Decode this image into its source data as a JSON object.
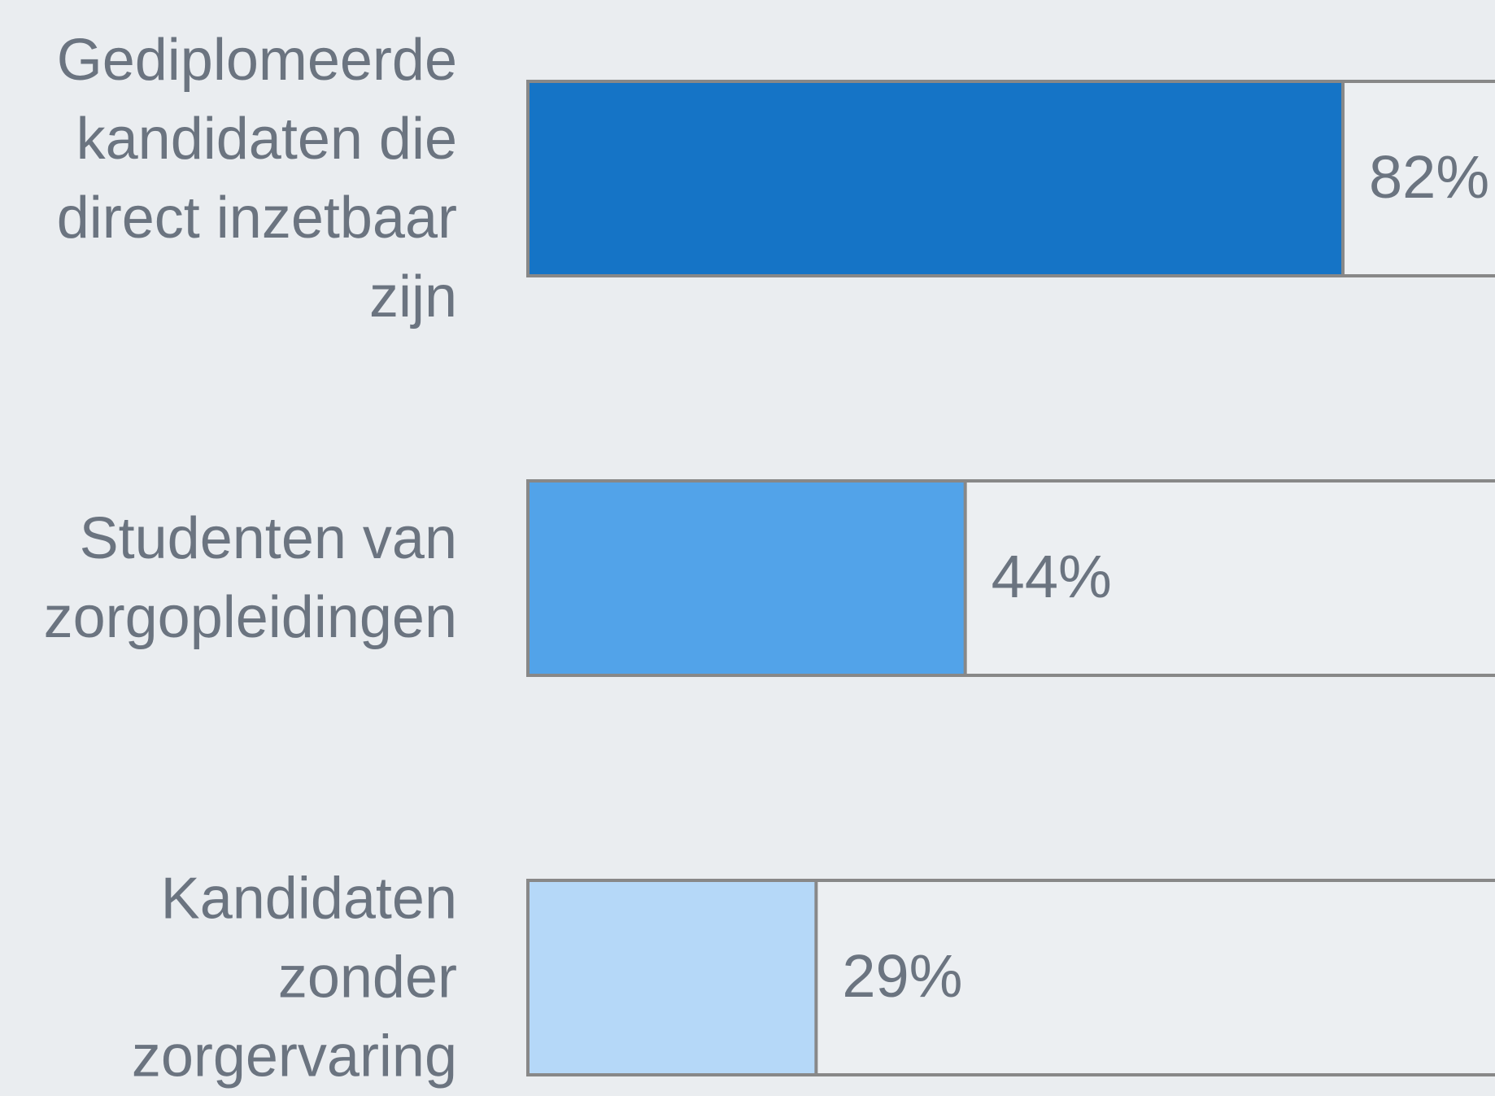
{
  "chart_data": {
    "type": "bar",
    "orientation": "horizontal",
    "categories": [
      "Gediplomeerde kandidaten die direct inzetbaar zijn",
      "Studenten van zorgopleidingen",
      "Kandidaten zonder zorgervaring"
    ],
    "values": [
      82,
      44,
      29
    ],
    "value_labels": [
      "82%",
      "44%",
      "29%"
    ],
    "colors": [
      "#1574c6",
      "#52a3e9",
      "#b5d8f8"
    ],
    "xlim": [
      0,
      100
    ]
  }
}
